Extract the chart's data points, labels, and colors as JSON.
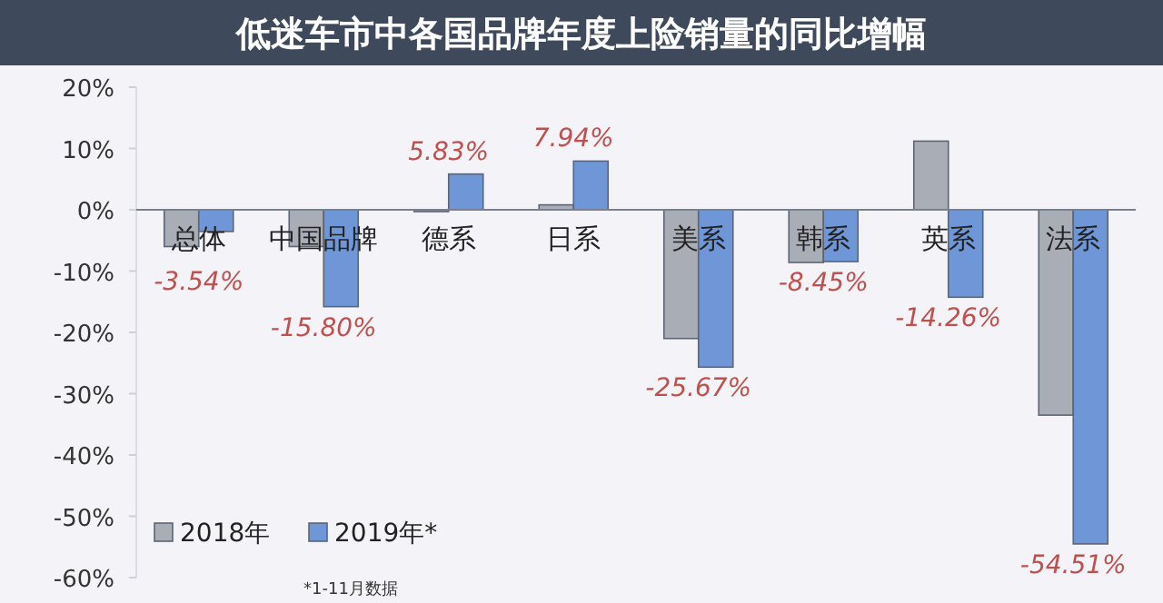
{
  "chart_data": {
    "type": "bar",
    "title": "低迷车市中各国品牌年度上险销量的同比增幅",
    "categories": [
      "总体",
      "中国品牌",
      "德系",
      "日系",
      "美系",
      "韩系",
      "英系",
      "法系"
    ],
    "series": [
      {
        "name": "2018年",
        "color": "#a9adb5",
        "values": [
          -6,
          -6,
          -0.3,
          0.8,
          -21,
          -8.6,
          11.2,
          -33.5
        ]
      },
      {
        "name": "2019年*",
        "color": "#6f97d8",
        "values": [
          -3.54,
          -15.8,
          5.83,
          7.94,
          -25.67,
          -8.45,
          -14.26,
          -54.51
        ],
        "value_labels": [
          "-3.54%",
          "-15.80%",
          "5.83%",
          "7.94%",
          "-25.67%",
          "-8.45%",
          "-14.26%",
          "-54.51%"
        ]
      }
    ],
    "ylim": [
      -60,
      20
    ],
    "yticks": [
      {
        "value": -60,
        "label": "-60%"
      },
      {
        "value": -50,
        "label": "-50%"
      },
      {
        "value": -40,
        "label": "-40%"
      },
      {
        "value": -30,
        "label": "-30%"
      },
      {
        "value": -20,
        "label": "-20%"
      },
      {
        "value": -10,
        "label": "-10%"
      },
      {
        "value": 0,
        "label": "0%"
      },
      {
        "value": 10,
        "label": "10%"
      },
      {
        "value": 20,
        "label": "20%"
      }
    ],
    "legend": "bottom left",
    "grid": false,
    "annotations": [
      "*1-11月数据"
    ]
  }
}
